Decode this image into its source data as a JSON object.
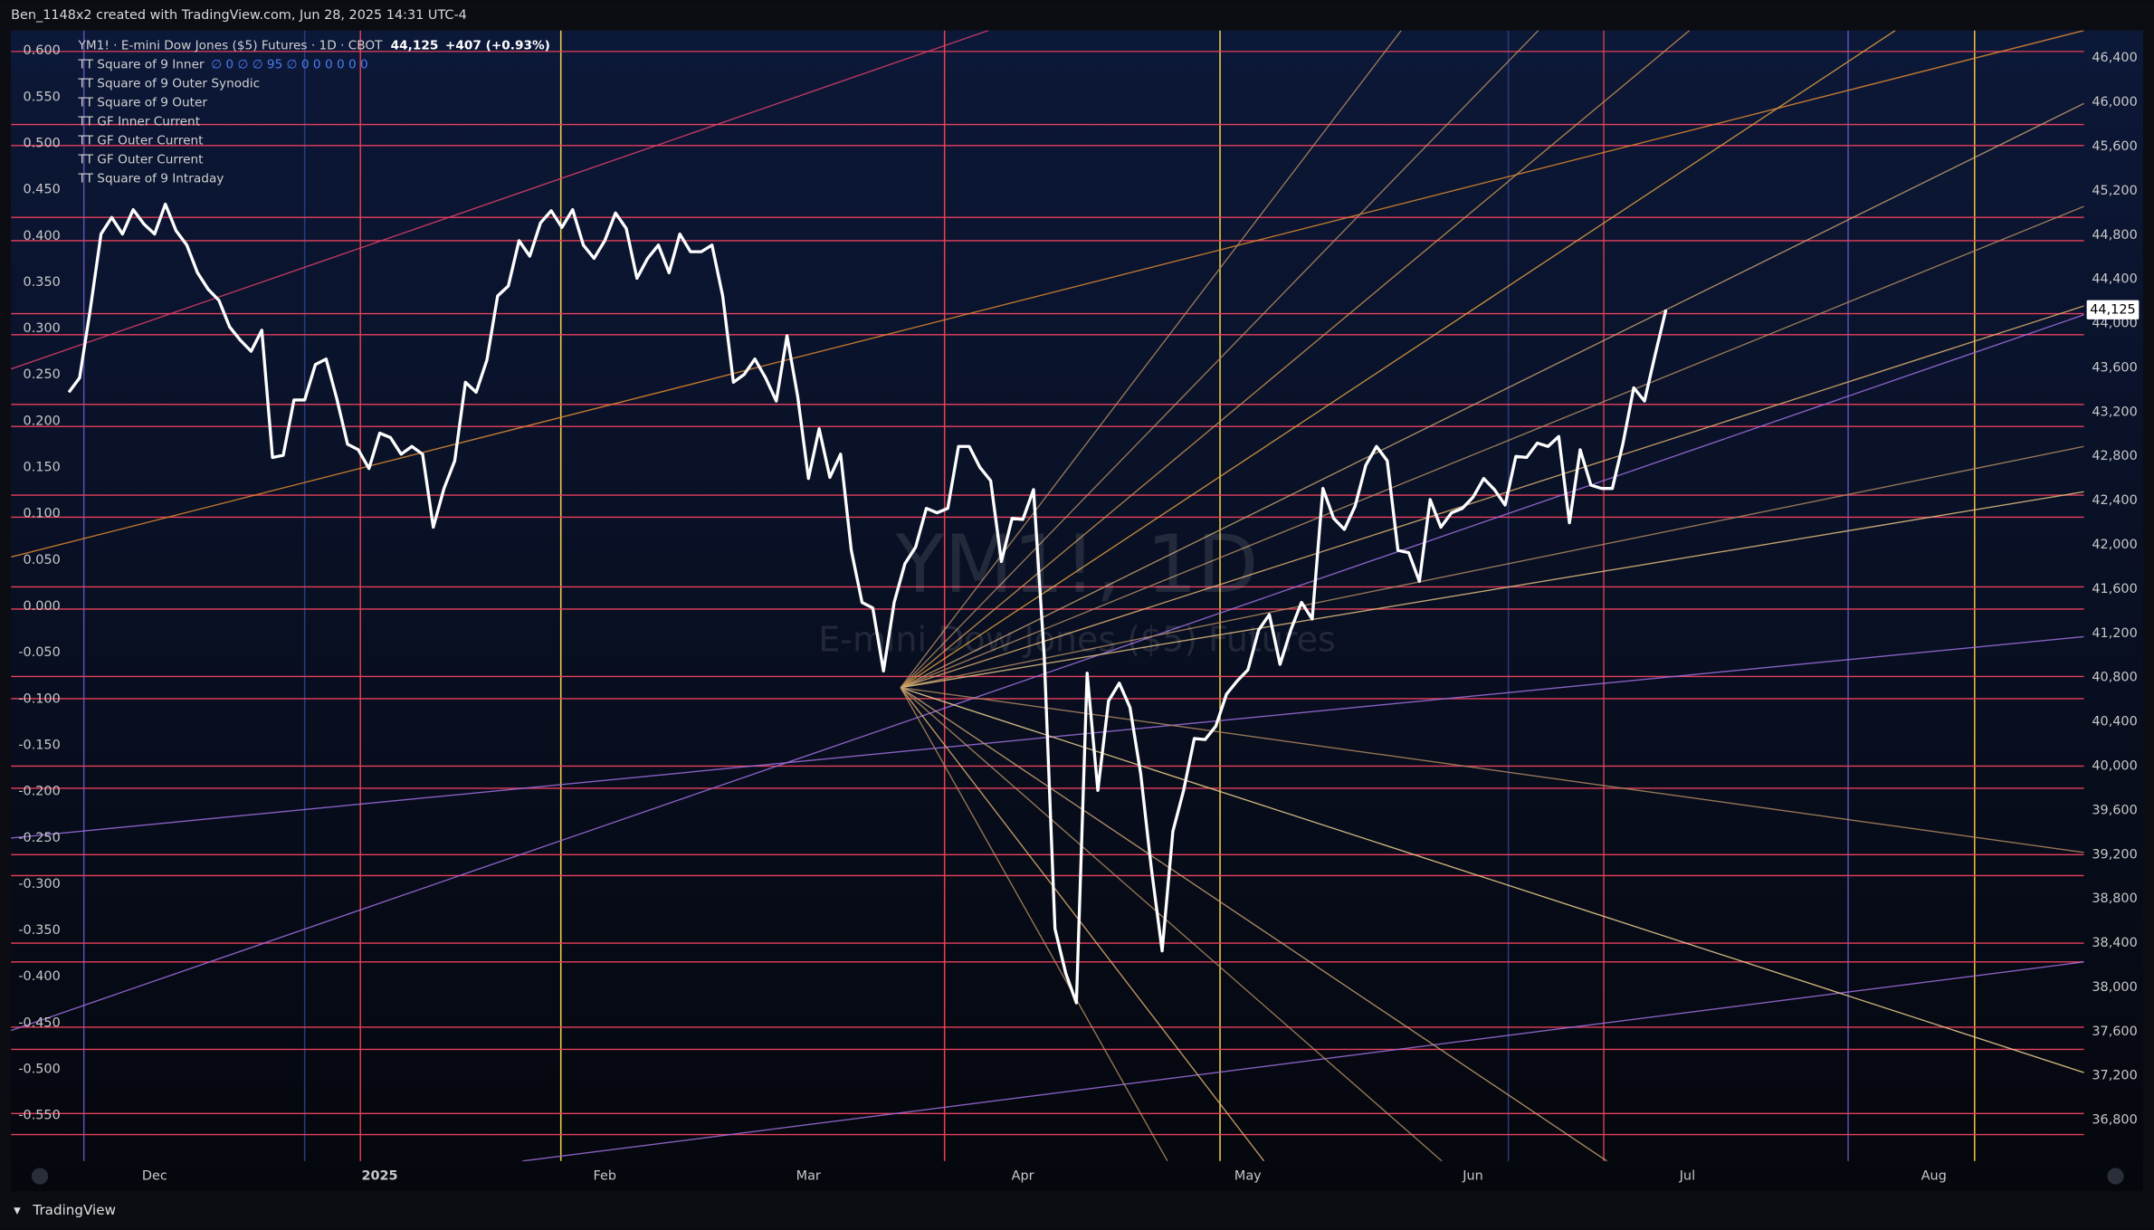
{
  "header": {
    "text": "Ben_1148x2 created with TradingView.com, Jun 28, 2025 14:31 UTC-4"
  },
  "footer": {
    "brand": "TradingView"
  },
  "chart_data": {
    "type": "line",
    "title": "YM1! · E-mini Dow Jones ($5) Futures · 1D · CBOT",
    "last_price_label": "44,125",
    "change": "+407 (+0.93%)",
    "watermark": "YM1!, 1D",
    "watermark_subtitle": "E-mini Dow Jones ($5) Futures",
    "indicators": [
      {
        "name": "TT Square of 9 Inner",
        "values_text": "∅ 0 ∅ ∅ 95 ∅ 0 0 0 0 0 0"
      },
      {
        "name": "TT Square of 9 Outer Synodic"
      },
      {
        "name": "TT Square of 9 Outer"
      },
      {
        "name": "TT GF Inner Current"
      },
      {
        "name": "TT GF Outer Current"
      },
      {
        "name": "TT GF Outer Current"
      },
      {
        "name": "TT Square of 9 Intraday"
      }
    ],
    "xlim": [
      -5.4,
      188
    ],
    "xticks": [
      {
        "value": 8,
        "label": "Dec"
      },
      {
        "value": 29,
        "label": "2025"
      },
      {
        "value": 50,
        "label": "Feb"
      },
      {
        "value": 69,
        "label": "Mar"
      },
      {
        "value": 89,
        "label": "Apr"
      },
      {
        "value": 110,
        "label": "May"
      },
      {
        "value": 131,
        "label": "Jun"
      },
      {
        "value": 151,
        "label": "Jul"
      },
      {
        "value": 174,
        "label": "Aug"
      }
    ],
    "ylim": [
      -0.599,
      0.622
    ],
    "yticks": [
      {
        "value": 0.6,
        "label": "0.600"
      },
      {
        "value": 0.55,
        "label": "0.550"
      },
      {
        "value": 0.5,
        "label": "0.500"
      },
      {
        "value": 0.45,
        "label": "0.450"
      },
      {
        "value": 0.4,
        "label": "0.400"
      },
      {
        "value": 0.35,
        "label": "0.350"
      },
      {
        "value": 0.3,
        "label": "0.300"
      },
      {
        "value": 0.25,
        "label": "0.250"
      },
      {
        "value": 0.2,
        "label": "0.200"
      },
      {
        "value": 0.15,
        "label": "0.150"
      },
      {
        "value": 0.1,
        "label": "0.100"
      },
      {
        "value": 0.05,
        "label": "0.050"
      },
      {
        "value": 0,
        "label": "0.000"
      },
      {
        "value": -0.05,
        "label": "-0.050"
      },
      {
        "value": -0.1,
        "label": "-0.100"
      },
      {
        "value": -0.15,
        "label": "-0.150"
      },
      {
        "value": -0.2,
        "label": "-0.200"
      },
      {
        "value": -0.25,
        "label": "-0.250"
      },
      {
        "value": -0.3,
        "label": "-0.300"
      },
      {
        "value": -0.35,
        "label": "-0.350"
      },
      {
        "value": -0.4,
        "label": "-0.400"
      },
      {
        "value": -0.45,
        "label": "-0.450"
      },
      {
        "value": -0.5,
        "label": "-0.500"
      },
      {
        "value": -0.55,
        "label": "-0.550"
      }
    ],
    "y2lim": [
      36430,
      46650
    ],
    "y2ticks": [
      {
        "value": 46400,
        "label": "46,400"
      },
      {
        "value": 46000,
        "label": "46,000"
      },
      {
        "value": 45600,
        "label": "45,600"
      },
      {
        "value": 45200,
        "label": "45,200"
      },
      {
        "value": 44800,
        "label": "44,800"
      },
      {
        "value": 44400,
        "label": "44,400"
      },
      {
        "value": 44000,
        "label": "44,000"
      },
      {
        "value": 43600,
        "label": "43,600"
      },
      {
        "value": 43200,
        "label": "43,200"
      },
      {
        "value": 42800,
        "label": "42,800"
      },
      {
        "value": 42400,
        "label": "42,400"
      },
      {
        "value": 42000,
        "label": "42,000"
      },
      {
        "value": 41600,
        "label": "41,600"
      },
      {
        "value": 41200,
        "label": "41,200"
      },
      {
        "value": 40800,
        "label": "40,800"
      },
      {
        "value": 40400,
        "label": "40,400"
      },
      {
        "value": 40000,
        "label": "40,000"
      },
      {
        "value": 39600,
        "label": "39,600"
      },
      {
        "value": 39200,
        "label": "39,200"
      },
      {
        "value": 38800,
        "label": "38,800"
      },
      {
        "value": 38400,
        "label": "38,400"
      },
      {
        "value": 38000,
        "label": "38,000"
      },
      {
        "value": 37600,
        "label": "37,600"
      },
      {
        "value": 37200,
        "label": "37,200"
      },
      {
        "value": 36800,
        "label": "36,800"
      }
    ],
    "series": [
      {
        "axis": "y2",
        "color": "#ffffff",
        "x": [
          0,
          1,
          2,
          3,
          4,
          5,
          6,
          7,
          8,
          9,
          10,
          11,
          12,
          13,
          14,
          15,
          16,
          17,
          18,
          19,
          20,
          21,
          22,
          23,
          24,
          25,
          26,
          27,
          28,
          29,
          30,
          31,
          32,
          33,
          34,
          35,
          36,
          37,
          38,
          39,
          40,
          41,
          42,
          43,
          44,
          45,
          46,
          47,
          48,
          49,
          50,
          51,
          52,
          53,
          54,
          55,
          56,
          57,
          58,
          59,
          60,
          61,
          62,
          63,
          64,
          65,
          66,
          67,
          68,
          69,
          70,
          71,
          72,
          73,
          74,
          75,
          76,
          77,
          78,
          79,
          80,
          81,
          82,
          83,
          84,
          85,
          86,
          87,
          88,
          89,
          90,
          91,
          92,
          93,
          94,
          95,
          96,
          97,
          98,
          99,
          100,
          101,
          102,
          103,
          104,
          105,
          106,
          107,
          108,
          109,
          110,
          111,
          112,
          113,
          114,
          115,
          116,
          117,
          118,
          119,
          120,
          121,
          122,
          123,
          124,
          125,
          126,
          127,
          128,
          129,
          130,
          131,
          132,
          133,
          134,
          135,
          136,
          137,
          138,
          139,
          140,
          141,
          142,
          143,
          144,
          145,
          146,
          147,
          148,
          149
        ],
        "values": [
          43380,
          43510,
          44130,
          44810,
          44960,
          44810,
          45030,
          44900,
          44810,
          45080,
          44840,
          44710,
          44460,
          44310,
          44210,
          43970,
          43850,
          43750,
          43940,
          42790,
          42810,
          43310,
          43310,
          43630,
          43680,
          43320,
          42910,
          42860,
          42690,
          43010,
          42970,
          42820,
          42890,
          42820,
          42160,
          42510,
          42760,
          43470,
          43380,
          43670,
          44250,
          44340,
          44750,
          44610,
          44910,
          45020,
          44870,
          45030,
          44710,
          44590,
          44750,
          45000,
          44860,
          44410,
          44590,
          44710,
          44460,
          44810,
          44650,
          44650,
          44710,
          44250,
          43470,
          43540,
          43680,
          43510,
          43300,
          43890,
          43340,
          42600,
          43050,
          42610,
          42820,
          41950,
          41480,
          41430,
          40860,
          41480,
          41830,
          41980,
          42330,
          42290,
          42330,
          42890,
          42890,
          42700,
          42580,
          41850,
          42240,
          42230,
          42500,
          40990,
          38530,
          38130,
          37860,
          40840,
          39780,
          40590,
          40750,
          40530,
          39930,
          39070,
          38330,
          39410,
          39780,
          40250,
          40240,
          40360,
          40650,
          40770,
          40870,
          41230,
          41370,
          40920,
          41230,
          41480,
          41330,
          42510,
          42240,
          42140,
          42350,
          42720,
          42890,
          42760,
          41950,
          41930,
          41670,
          42410,
          42160,
          42290,
          42330,
          42430,
          42600,
          42500,
          42360,
          42800,
          42790,
          42920,
          42890,
          42980,
          42200,
          42860,
          42540,
          42510,
          42510,
          42920,
          43420,
          43300,
          43720,
          44125
        ]
      }
    ],
    "hlines": {
      "color": "#e8405c",
      "values": [
        46460,
        45800,
        45610,
        44960,
        44750,
        44090,
        43900,
        43270,
        43070,
        42450,
        42250,
        41620,
        41420,
        40810,
        40610,
        40000,
        39800,
        39200,
        39010,
        38400,
        38230,
        37640,
        37440,
        36860,
        36670
      ]
    },
    "vlines": [
      {
        "x": 1.4,
        "color": "#5a4fb0"
      },
      {
        "x": 22,
        "color": "#283c80"
      },
      {
        "x": 27.2,
        "color": "#d9404a"
      },
      {
        "x": 45.9,
        "color": "#f2d04a"
      },
      {
        "x": 81.7,
        "color": "#e8404c"
      },
      {
        "x": 107.4,
        "color": "#f2d04a"
      },
      {
        "x": 134.3,
        "color": "#2c3a78"
      },
      {
        "x": 143.2,
        "color": "#c0404c"
      },
      {
        "x": 166,
        "color": "#5a4fb0"
      },
      {
        "x": 177.8,
        "color": "#f2c040"
      }
    ],
    "overlays": [
      {
        "color": "#e0406a",
        "x": [
          -5.4,
          85.8
        ],
        "values": [
          43590,
          46650
        ]
      },
      {
        "color": "#e08a30",
        "x": [
          -5.4,
          188
        ],
        "values": [
          41890,
          46650
        ]
      },
      {
        "color": "#a070e0",
        "x": [
          -5.4,
          188
        ],
        "values": [
          39350,
          41170
        ]
      },
      {
        "color": "#a070e0",
        "x": [
          -5.4,
          188
        ],
        "values": [
          37610,
          44080
        ]
      },
      {
        "color": "#a070e0",
        "x": [
          42.3,
          188
        ],
        "values": [
          36430,
          38230
        ]
      },
      {
        "color": "#b08a60",
        "x": [
          77.6,
          124.3
        ],
        "values": [
          40710,
          46650
        ]
      },
      {
        "color": "#b08a60",
        "x": [
          77.6,
          137.1
        ],
        "values": [
          40710,
          46650
        ]
      },
      {
        "color": "#c89050",
        "x": [
          77.6,
          151.2
        ],
        "values": [
          40710,
          46650
        ]
      },
      {
        "color": "#e0a040",
        "x": [
          77.6,
          170.4
        ],
        "values": [
          40710,
          46650
        ]
      },
      {
        "color": "#c8a070",
        "x": [
          77.6,
          188
        ],
        "values": [
          40710,
          45990
        ]
      },
      {
        "color": "#b08a60",
        "x": [
          77.6,
          188
        ],
        "values": [
          40710,
          45060
        ]
      },
      {
        "color": "#e0b070",
        "x": [
          77.6,
          188
        ],
        "values": [
          40710,
          44160
        ]
      },
      {
        "color": "#b08a60",
        "x": [
          77.6,
          188
        ],
        "values": [
          40710,
          42890
        ]
      },
      {
        "color": "#e0c080",
        "x": [
          77.6,
          188
        ],
        "values": [
          40710,
          42480
        ]
      },
      {
        "color": "#b08a60",
        "x": [
          77.6,
          102.5
        ],
        "values": [
          40710,
          36430
        ]
      },
      {
        "color": "#e0b070",
        "x": [
          77.6,
          111.5
        ],
        "values": [
          40710,
          36430
        ]
      },
      {
        "color": "#b08a60",
        "x": [
          77.6,
          128.1
        ],
        "values": [
          40710,
          36430
        ]
      },
      {
        "color": "#c8a070",
        "x": [
          77.6,
          143.5
        ],
        "values": [
          40710,
          36430
        ]
      },
      {
        "color": "#f0d090",
        "x": [
          77.6,
          188
        ],
        "values": [
          40710,
          37230
        ]
      },
      {
        "color": "#b08a60",
        "x": [
          77.6,
          188
        ],
        "values": [
          40710,
          39220
        ]
      }
    ]
  }
}
